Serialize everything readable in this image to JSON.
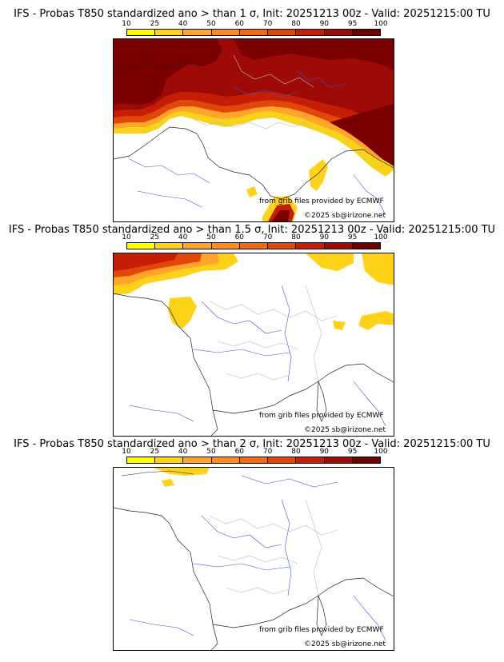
{
  "colorbar": {
    "labels": [
      "10",
      "25",
      "40",
      "50",
      "60",
      "70",
      "80",
      "90",
      "95",
      "100"
    ],
    "colors": [
      "#ffff00",
      "#ffd21a",
      "#ffa52b",
      "#ff8a1f",
      "#f26a12",
      "#e2470a",
      "#c41e06",
      "#9e0a05",
      "#6e0000"
    ]
  },
  "panels": [
    {
      "title": "IFS - Probas T850  standardized ano > than 1 σ, Init: 20251213 00z - Valid: 20251215:00 TU",
      "credit": "from grib files provided by ECMWF",
      "copyright": "©2025 sb@irizone.net"
    },
    {
      "title": "IFS - Probas T850  standardized ano > than 1.5 σ, Init: 20251213 00z - Valid: 20251215:00 TU",
      "credit": "from grib files provided by ECMWF",
      "copyright": "©2025 sb@irizone.net"
    },
    {
      "title": "IFS - Probas T850  standardized ano > than 2 σ, Init: 20251213 00z - Valid: 20251215:00 TU",
      "credit": "from grib files provided by ECMWF",
      "copyright": "©2025 sb@irizone.net"
    }
  ]
}
